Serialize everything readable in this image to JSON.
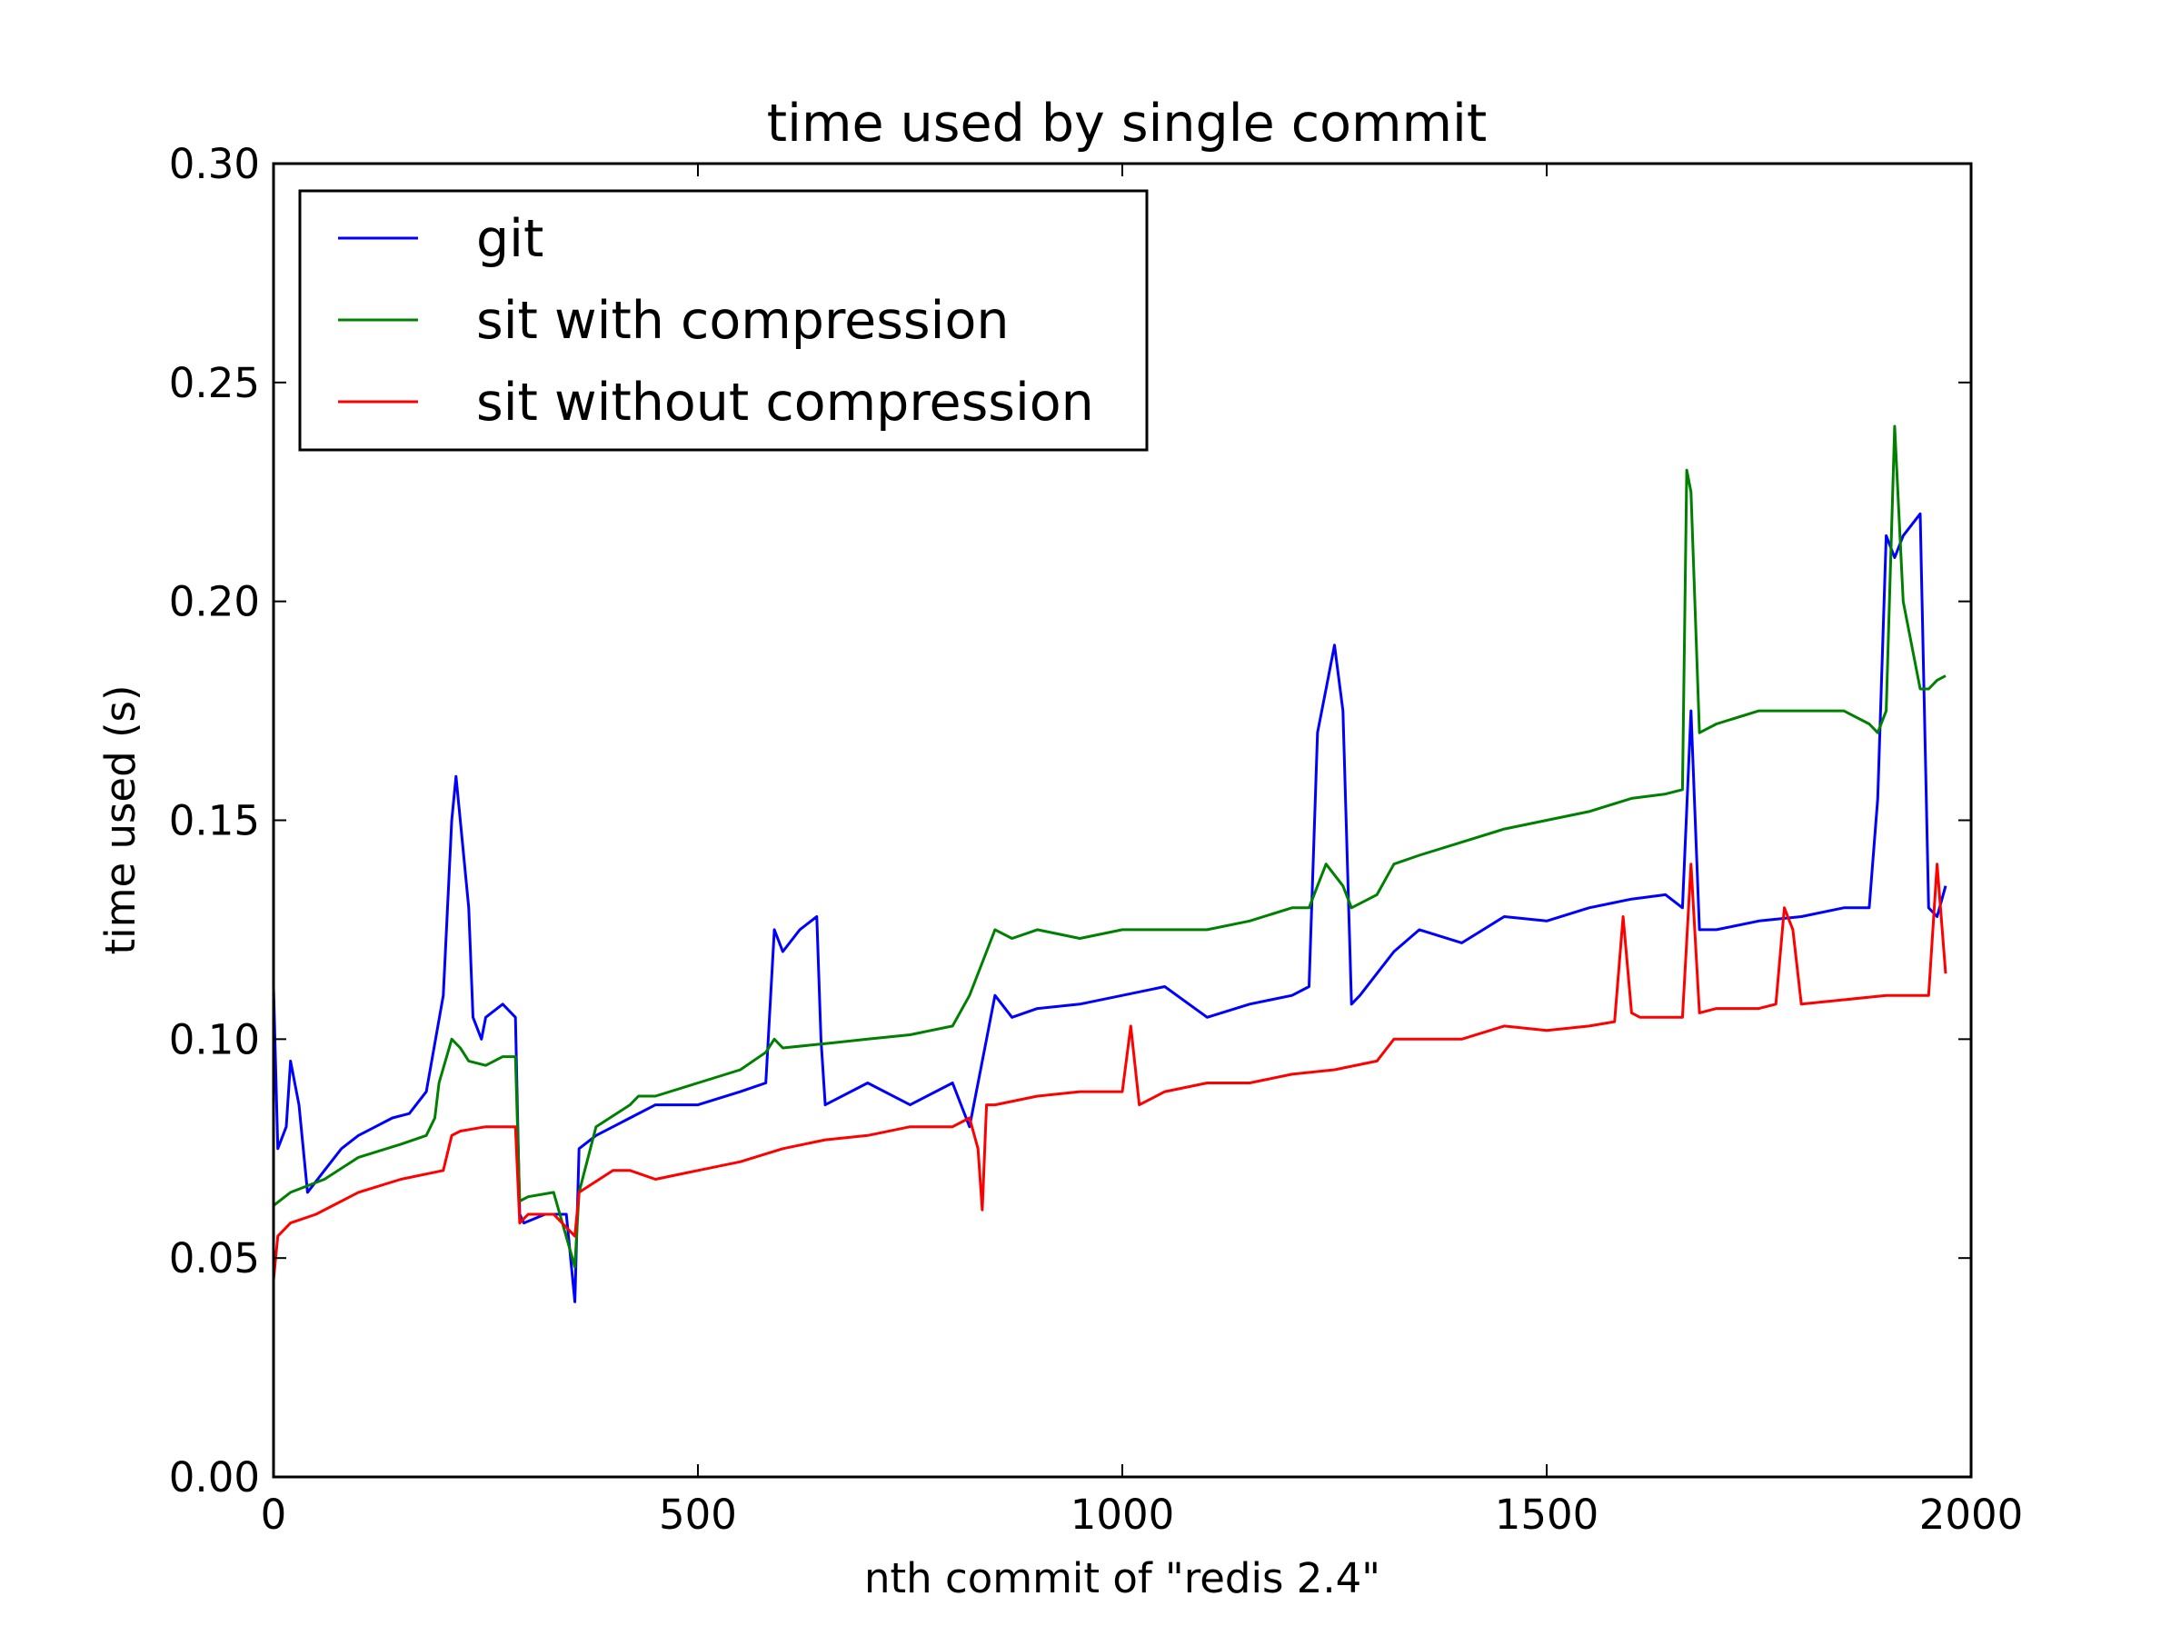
{
  "chart_data": {
    "type": "line",
    "title": "time used by single commit",
    "xlabel": "nth commit of \"redis 2.4\"",
    "ylabel": "time used (s)",
    "xlim": [
      0,
      2000
    ],
    "ylim": [
      0.0,
      0.3
    ],
    "xticks": [
      "0",
      "500",
      "1000",
      "1500",
      "2000"
    ],
    "yticks": [
      "0.00",
      "0.05",
      "0.10",
      "0.15",
      "0.20",
      "0.25",
      "0.30"
    ],
    "grid": false,
    "legend_position": "top-left",
    "series": [
      {
        "name": "git",
        "color": "#0000ff",
        "x": [
          0,
          5,
          15,
          20,
          30,
          40,
          60,
          80,
          100,
          120,
          140,
          160,
          180,
          200,
          210,
          215,
          220,
          230,
          235,
          245,
          250,
          270,
          285,
          290,
          295,
          320,
          345,
          355,
          360,
          380,
          400,
          420,
          450,
          500,
          550,
          580,
          590,
          600,
          620,
          640,
          645,
          650,
          700,
          750,
          800,
          820,
          840,
          850,
          870,
          900,
          950,
          1000,
          1050,
          1100,
          1150,
          1200,
          1220,
          1230,
          1240,
          1250,
          1260,
          1270,
          1280,
          1300,
          1320,
          1350,
          1400,
          1450,
          1500,
          1550,
          1600,
          1640,
          1660,
          1670,
          1680,
          1700,
          1750,
          1800,
          1850,
          1880,
          1890,
          1900,
          1910,
          1920,
          1940,
          1950,
          1960,
          1970
        ],
        "y": [
          0.112,
          0.075,
          0.08,
          0.095,
          0.085,
          0.065,
          0.07,
          0.075,
          0.078,
          0.08,
          0.082,
          0.083,
          0.088,
          0.11,
          0.15,
          0.16,
          0.15,
          0.13,
          0.105,
          0.1,
          0.105,
          0.108,
          0.105,
          0.06,
          0.058,
          0.06,
          0.06,
          0.04,
          0.075,
          0.078,
          0.08,
          0.082,
          0.085,
          0.085,
          0.088,
          0.09,
          0.125,
          0.12,
          0.125,
          0.128,
          0.1,
          0.085,
          0.09,
          0.085,
          0.09,
          0.08,
          0.1,
          0.11,
          0.105,
          0.107,
          0.108,
          0.11,
          0.112,
          0.105,
          0.108,
          0.11,
          0.112,
          0.17,
          0.18,
          0.19,
          0.175,
          0.108,
          0.11,
          0.115,
          0.12,
          0.125,
          0.122,
          0.128,
          0.127,
          0.13,
          0.132,
          0.133,
          0.13,
          0.175,
          0.125,
          0.125,
          0.127,
          0.128,
          0.13,
          0.13,
          0.155,
          0.215,
          0.21,
          0.215,
          0.22,
          0.13,
          0.128,
          0.135
        ]
      },
      {
        "name": "sit with compression",
        "color": "#008000",
        "x": [
          0,
          20,
          60,
          100,
          150,
          180,
          190,
          195,
          210,
          220,
          230,
          250,
          270,
          285,
          290,
          300,
          330,
          355,
          360,
          380,
          420,
          430,
          450,
          500,
          550,
          580,
          590,
          600,
          650,
          700,
          750,
          800,
          820,
          840,
          850,
          870,
          900,
          950,
          1000,
          1050,
          1100,
          1150,
          1200,
          1220,
          1230,
          1240,
          1260,
          1270,
          1300,
          1320,
          1350,
          1400,
          1450,
          1500,
          1550,
          1600,
          1640,
          1660,
          1665,
          1670,
          1680,
          1700,
          1750,
          1800,
          1850,
          1880,
          1890,
          1900,
          1910,
          1920,
          1940,
          1950,
          1960,
          1970
        ],
        "y": [
          0.062,
          0.065,
          0.068,
          0.073,
          0.076,
          0.078,
          0.082,
          0.09,
          0.1,
          0.098,
          0.095,
          0.094,
          0.096,
          0.096,
          0.063,
          0.064,
          0.065,
          0.048,
          0.065,
          0.08,
          0.085,
          0.087,
          0.087,
          0.09,
          0.093,
          0.097,
          0.1,
          0.098,
          0.099,
          0.1,
          0.101,
          0.103,
          0.11,
          0.12,
          0.125,
          0.123,
          0.125,
          0.123,
          0.125,
          0.125,
          0.125,
          0.127,
          0.13,
          0.13,
          0.135,
          0.14,
          0.135,
          0.13,
          0.133,
          0.14,
          0.142,
          0.145,
          0.148,
          0.15,
          0.152,
          0.155,
          0.156,
          0.157,
          0.23,
          0.225,
          0.17,
          0.172,
          0.175,
          0.175,
          0.175,
          0.172,
          0.17,
          0.175,
          0.24,
          0.2,
          0.18,
          0.18,
          0.182,
          0.183
        ]
      },
      {
        "name": "sit without compression",
        "color": "#ff0000",
        "x": [
          0,
          5,
          20,
          50,
          100,
          150,
          200,
          210,
          220,
          250,
          280,
          285,
          290,
          300,
          330,
          355,
          360,
          400,
          420,
          450,
          500,
          550,
          600,
          650,
          700,
          750,
          800,
          820,
          830,
          835,
          840,
          850,
          900,
          950,
          1000,
          1010,
          1020,
          1050,
          1100,
          1150,
          1200,
          1250,
          1300,
          1320,
          1350,
          1400,
          1450,
          1500,
          1550,
          1580,
          1590,
          1600,
          1610,
          1650,
          1660,
          1670,
          1680,
          1700,
          1750,
          1770,
          1780,
          1790,
          1800,
          1850,
          1900,
          1950,
          1960,
          1970
        ],
        "y": [
          0.045,
          0.055,
          0.058,
          0.06,
          0.065,
          0.068,
          0.07,
          0.078,
          0.079,
          0.08,
          0.08,
          0.08,
          0.058,
          0.06,
          0.06,
          0.055,
          0.065,
          0.07,
          0.07,
          0.068,
          0.07,
          0.072,
          0.075,
          0.077,
          0.078,
          0.08,
          0.08,
          0.082,
          0.075,
          0.061,
          0.085,
          0.085,
          0.087,
          0.088,
          0.088,
          0.103,
          0.085,
          0.088,
          0.09,
          0.09,
          0.092,
          0.093,
          0.095,
          0.1,
          0.1,
          0.1,
          0.103,
          0.102,
          0.103,
          0.104,
          0.128,
          0.106,
          0.105,
          0.105,
          0.105,
          0.14,
          0.106,
          0.107,
          0.107,
          0.108,
          0.13,
          0.125,
          0.108,
          0.109,
          0.11,
          0.11,
          0.14,
          0.115
        ]
      }
    ]
  }
}
